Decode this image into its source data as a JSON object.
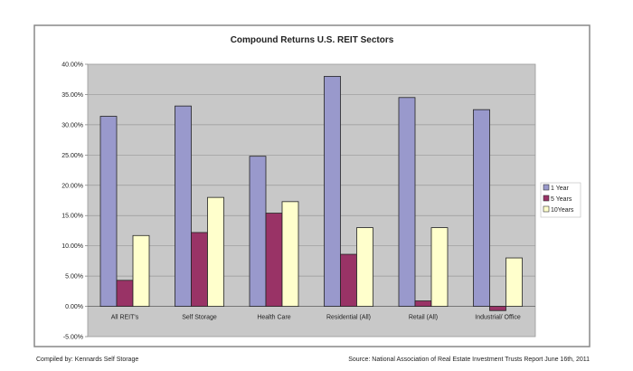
{
  "chart_data": {
    "type": "bar",
    "title": "Compound Returns U.S. REIT Sectors",
    "xlabel": "",
    "ylabel": "",
    "ylim": [
      -5,
      40
    ],
    "yticks": [
      "40.00%",
      "35.00%",
      "30.00%",
      "25.00%",
      "20.00%",
      "15.00%",
      "10.00%",
      "5.00%",
      "0.00%",
      "-5.00%"
    ],
    "ytick_values": [
      40,
      35,
      30,
      25,
      20,
      15,
      10,
      5,
      0,
      -5
    ],
    "grid": true,
    "legend_position": "right",
    "categories": [
      "All REIT's",
      "Self Storage",
      "Health Care",
      "Residential (All)",
      "Retail (All)",
      "Industrial/ Office"
    ],
    "series": [
      {
        "name": "1 Year",
        "color": "#9999cc",
        "values": [
          31.4,
          33.1,
          24.8,
          38.0,
          34.5,
          32.5
        ]
      },
      {
        "name": "5 Years",
        "color": "#993366",
        "values": [
          4.3,
          12.2,
          15.4,
          8.6,
          0.9,
          -0.7
        ]
      },
      {
        "name": "10Years",
        "color": "#ffffcc",
        "values": [
          11.7,
          18.0,
          17.3,
          13.0,
          13.0,
          8.0
        ]
      }
    ]
  },
  "footer": {
    "left": "Compiled by: Kennards Self Storage",
    "right": "Source: National Association of Real Estate Investment Trusts Report June 16th, 2011"
  }
}
